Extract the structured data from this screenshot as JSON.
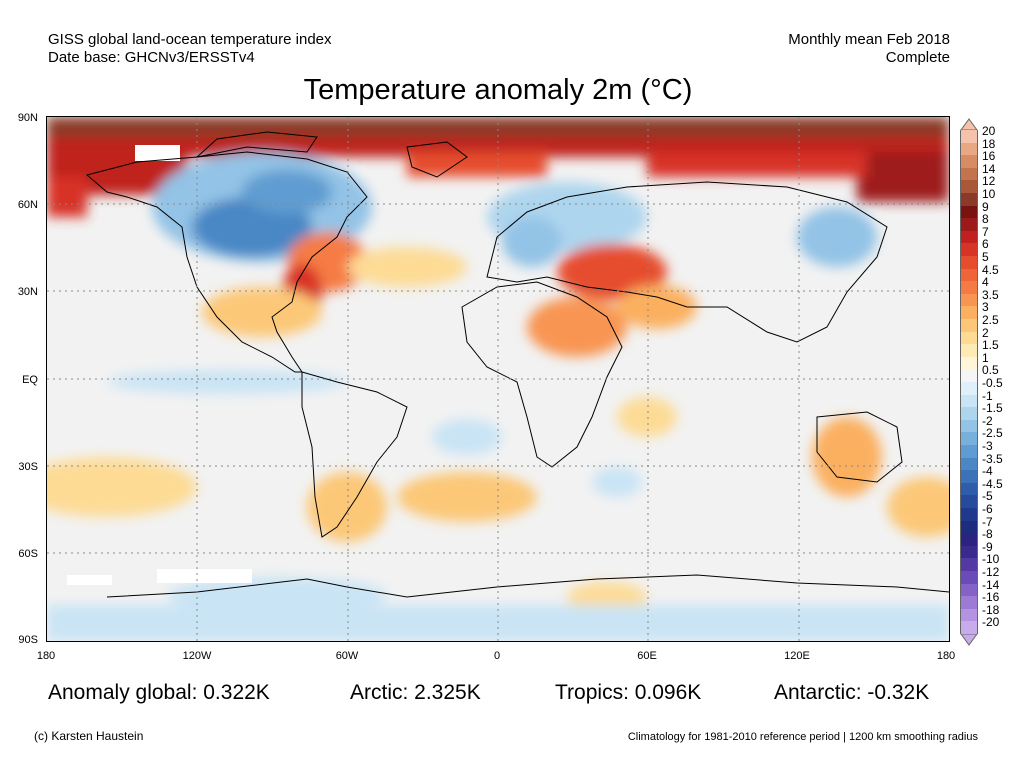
{
  "header": {
    "dataset_name": "GISS global land-ocean temperature index",
    "dataset_base": "Date base: GHCNv3/ERSSTv4",
    "period": "Monthly mean Feb 2018",
    "status": "Complete"
  },
  "title": "Temperature anomaly 2m (°C)",
  "axes": {
    "lat_labels": [
      "90N",
      "60N",
      "30N",
      "EQ",
      "30S",
      "60S",
      "90S"
    ],
    "lon_labels": [
      "180",
      "120W",
      "60W",
      "0",
      "60E",
      "120E",
      "180"
    ]
  },
  "colorbar": {
    "levels": [
      "20",
      "18",
      "16",
      "14",
      "12",
      "10",
      "9",
      "8",
      "7",
      "6",
      "5",
      "4.5",
      "4",
      "3.5",
      "3",
      "2.5",
      "2",
      "1.5",
      "1",
      "0.5",
      "-0.5",
      "-1",
      "-1.5",
      "-2",
      "-2.5",
      "-3",
      "-3.5",
      "-4",
      "-4.5",
      "-5",
      "-6",
      "-7",
      "-8",
      "-9",
      "-10",
      "-12",
      "-14",
      "-16",
      "-18",
      "-20"
    ],
    "colors": [
      "#f5c3ab",
      "#e8a884",
      "#d78c64",
      "#c4734f",
      "#a9583a",
      "#8a3a28",
      "#7a1212",
      "#9e1a1a",
      "#c0211f",
      "#d83327",
      "#e64d2e",
      "#f0643a",
      "#f57b45",
      "#f89552",
      "#fbb061",
      "#fcc878",
      "#fddb95",
      "#feeab5",
      "#fff6d9",
      "#f5f5f5",
      "#e0f0fa",
      "#c9e4f5",
      "#aed5ee",
      "#93c3e6",
      "#78b0dc",
      "#5e9cd1",
      "#4a87c5",
      "#3b72b8",
      "#2f5daa",
      "#264b9c",
      "#1f3a8c",
      "#1d2d7c",
      "#2a2480",
      "#3b2a8e",
      "#5438a4",
      "#6b4bb8",
      "#8462c8",
      "#9c7ad6",
      "#b393e2",
      "#c8abec"
    ]
  },
  "stats": {
    "global": "Anomaly global: 0.322K",
    "arctic": "Arctic: 2.325K",
    "tropics": "Tropics: 0.096K",
    "antarctic": "Antarctic: -0.32K"
  },
  "footer": {
    "credit": "(c) Karsten Haustein",
    "note": "Climatology for 1981-2010 reference period | 1200 km smoothing radius"
  }
}
